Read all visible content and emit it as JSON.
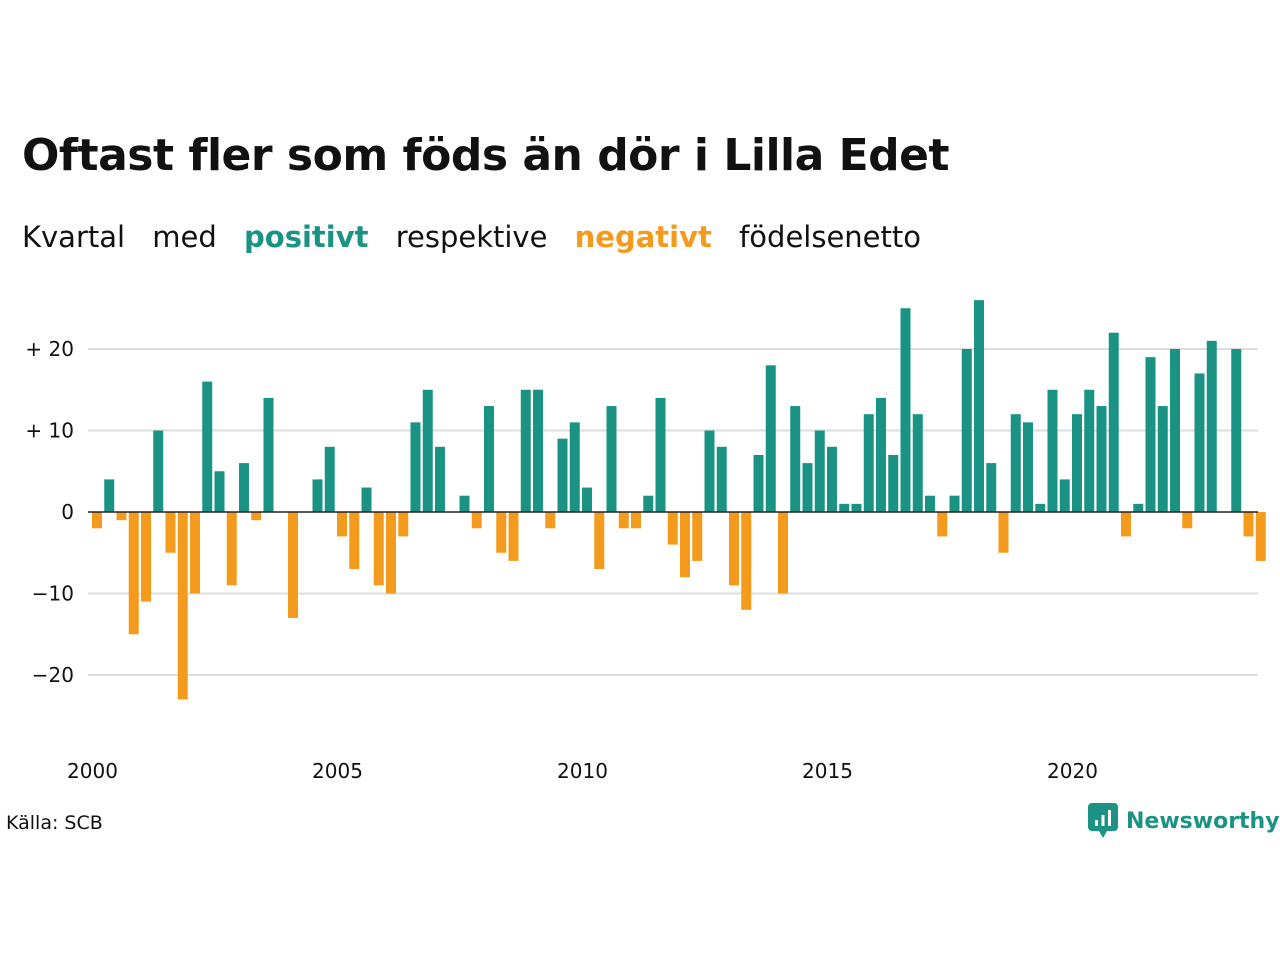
{
  "title": "Oftast fler som föds än dör i Lilla Edet",
  "subtitle": {
    "part1": "Kvartal",
    "part2": "med",
    "positive": "positivt",
    "part3": "respektive",
    "negative": "negativt",
    "part4": "födelsenetto"
  },
  "source": "Källa: SCB",
  "brand": {
    "name": "Newsworthy",
    "icon": "newsworthy-logo-icon"
  },
  "colors": {
    "positive": "#1a9384",
    "negative": "#f49b1e",
    "grid": "#dddddd",
    "axis": "#222222"
  },
  "chart_data": {
    "type": "bar",
    "title": "Oftast fler som föds än dör i Lilla Edet",
    "subtitle": "Kvartal med positivt respektive negativt födelsenetto",
    "xlabel": "",
    "ylabel": "",
    "x_start_year": 2000,
    "x_start_quarter": 1,
    "x_ticks": [
      2000,
      2005,
      2010,
      2015,
      2020
    ],
    "x_tick_labels": [
      "2000",
      "2005",
      "2010",
      "2015",
      "2020"
    ],
    "y_ticks": [
      20,
      10,
      0,
      -10,
      -20
    ],
    "y_tick_labels": [
      "+ 20",
      "+ 10",
      "0",
      "−10",
      "−20"
    ],
    "ylim": [
      -28,
      26
    ],
    "grid": true,
    "values": [
      -2,
      4,
      -1,
      -15,
      -11,
      10,
      -5,
      -23,
      -10,
      16,
      5,
      -9,
      6,
      -1,
      14,
      0,
      -13,
      0,
      4,
      8,
      -3,
      -7,
      3,
      -9,
      -10,
      -3,
      11,
      15,
      8,
      0,
      2,
      -2,
      13,
      -5,
      -6,
      15,
      15,
      -2,
      9,
      11,
      3,
      -7,
      13,
      -2,
      -2,
      2,
      14,
      -4,
      -8,
      -6,
      10,
      8,
      -9,
      -12,
      7,
      18,
      -10,
      13,
      6,
      10,
      8,
      1,
      1,
      12,
      14,
      7,
      25,
      12,
      2,
      -3,
      2,
      20,
      26,
      6,
      -5,
      12,
      11,
      1,
      15,
      4,
      12,
      15,
      13,
      22,
      -3,
      1,
      19,
      13,
      20,
      -2,
      17,
      21,
      0,
      20,
      -3,
      -6
    ]
  }
}
